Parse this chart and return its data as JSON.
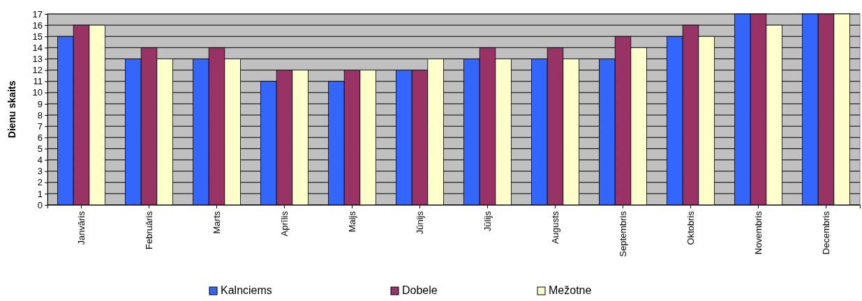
{
  "chart_data": {
    "type": "bar",
    "ylabel": "Dienu skaits",
    "categories": [
      "Janvāris",
      "Februāris",
      "Marts",
      "Aprīlis",
      "Maijs",
      "Jūnijs",
      "Jūlijs",
      "Augusts",
      "Septembris",
      "Oktobris",
      "Novembris",
      "Decembris"
    ],
    "series": [
      {
        "name": "Kalnciems",
        "color": "#3366ff",
        "values": [
          15,
          13,
          13,
          11,
          11,
          12,
          13,
          13,
          13,
          15,
          17,
          17
        ]
      },
      {
        "name": "Dobele",
        "color": "#993366",
        "values": [
          16,
          14,
          14,
          12,
          12,
          12,
          14,
          14,
          15,
          16,
          17,
          17
        ]
      },
      {
        "name": "Mežotne",
        "color": "#ffffcc",
        "values": [
          16,
          13,
          13,
          12,
          12,
          13,
          13,
          13,
          14,
          15,
          16,
          17
        ]
      }
    ],
    "ylim": [
      0,
      17
    ],
    "yticks": [
      0,
      1,
      2,
      3,
      4,
      5,
      6,
      7,
      8,
      9,
      10,
      11,
      12,
      13,
      14,
      15,
      16,
      17
    ],
    "grid": "y",
    "legend": "bottom"
  }
}
